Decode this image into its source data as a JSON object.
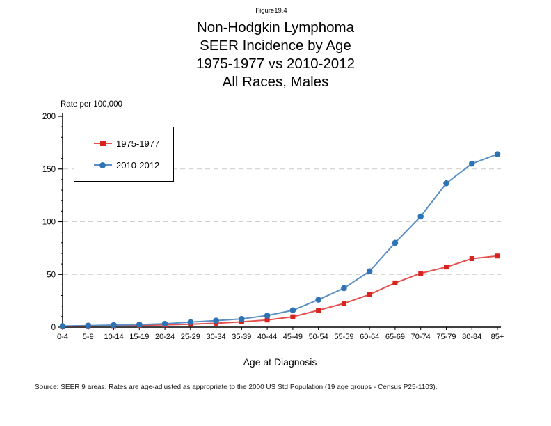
{
  "figure": {
    "label": "Figure19.4"
  },
  "title": {
    "lines": [
      "Non-Hodgkin Lymphoma",
      "SEER Incidence by Age",
      "1975-1977 vs 2010-2012",
      "All Races, Males"
    ]
  },
  "axis": {
    "y_label": "Rate per 100,000",
    "x_label": "Age at Diagnosis"
  },
  "source_note": "Source: SEER 9 areas. Rates are age-adjusted as appropriate to the 2000 US Std Population (19 age groups - Census P25-1103).",
  "chart_data": {
    "type": "line",
    "title": "Non-Hodgkin Lymphoma SEER Incidence by Age, 1975-1977 vs 2010-2012, All Races, Males",
    "xlabel": "Age at Diagnosis",
    "ylabel": "Rate per 100,000",
    "categories": [
      "0-4",
      "5-9",
      "10-14",
      "15-19",
      "20-24",
      "25-29",
      "30-34",
      "35-39",
      "40-44",
      "45-49",
      "50-54",
      "55-59",
      "60-64",
      "65-69",
      "70-74",
      "75-79",
      "80-84",
      "85+"
    ],
    "series": [
      {
        "name": "1975-1977",
        "marker": "square",
        "marker_color": "#d8231f",
        "line_color": "#e2514d",
        "values": [
          0.9,
          1.2,
          1.4,
          1.7,
          2.2,
          2.8,
          3.7,
          5.0,
          6.8,
          9.8,
          16.0,
          22.5,
          31.0,
          42.0,
          51.0,
          57.0,
          65.0,
          67.5
        ]
      },
      {
        "name": "2010-2012",
        "marker": "circle",
        "marker_color": "#2e74b5",
        "line_color": "#5b8fc6",
        "values": [
          1.0,
          1.5,
          2.0,
          2.5,
          3.2,
          4.8,
          6.2,
          7.8,
          11.0,
          16.0,
          26.0,
          37.0,
          53.0,
          80.0,
          105.0,
          136.5,
          155.0,
          164.0
        ]
      }
    ],
    "ylim": [
      0,
      200
    ],
    "yticks": [
      0,
      50,
      100,
      150,
      200
    ],
    "minor_ytick_step": 10,
    "gridlines_at": [
      50,
      100,
      150
    ],
    "grid_style": "dashed",
    "grid_on": true,
    "legend_position": "top-left",
    "axis_color": "#000000",
    "grid_color": "#cccccc",
    "background_color": "#ffffff"
  }
}
